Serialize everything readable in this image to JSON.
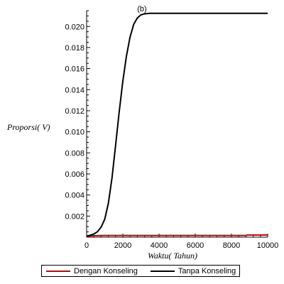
{
  "chart_data": {
    "type": "line",
    "title": "(b)",
    "xlabel": "Waktu( Tahun)",
    "ylabel": "Proporsi( V)",
    "xlim": [
      0,
      10000
    ],
    "ylim": [
      0,
      0.0215
    ],
    "x_ticks": [
      0,
      2000,
      4000,
      6000,
      8000,
      10000
    ],
    "x_tick_labels": [
      "0",
      "2000",
      "4000",
      "6000",
      "8000",
      "10000"
    ],
    "y_ticks": [
      0.002,
      0.004,
      0.006,
      0.008,
      0.01,
      0.012,
      0.014,
      0.016,
      0.018,
      0.02
    ],
    "y_tick_labels": [
      "0.002",
      "0.004",
      "0.006",
      "0.008",
      "0.010",
      "0.012",
      "0.014",
      "0.016",
      "0.018",
      "0.020"
    ],
    "grid": false,
    "legend_position": "bottom",
    "series": [
      {
        "name": "Dengan Konseling",
        "color": "#d00000",
        "x": [
          0,
          500,
          1000,
          2000,
          3000,
          4000,
          5000,
          6000,
          7000,
          8000,
          8800,
          8900,
          10000
        ],
        "y": [
          0.0001,
          0.00014,
          0.00016,
          0.00016,
          0.00016,
          0.00016,
          0.00016,
          0.00016,
          0.00016,
          0.00016,
          0.00016,
          0.0002,
          0.0002
        ]
      },
      {
        "name": "Tanpa Konseling",
        "color": "#000000",
        "x": [
          0,
          200,
          400,
          600,
          800,
          1000,
          1200,
          1400,
          1600,
          1800,
          2000,
          2200,
          2400,
          2600,
          2800,
          3000,
          3200,
          3500,
          4000,
          5000,
          6000,
          7000,
          8000,
          9000,
          10000
        ],
        "y": [
          0.0001,
          0.00018,
          0.0003,
          0.00052,
          0.00095,
          0.0017,
          0.0032,
          0.0056,
          0.0087,
          0.0119,
          0.0148,
          0.0172,
          0.019,
          0.0202,
          0.0208,
          0.0211,
          0.0212,
          0.02125,
          0.02125,
          0.02125,
          0.02125,
          0.02125,
          0.02125,
          0.02125,
          0.02125
        ]
      }
    ]
  }
}
